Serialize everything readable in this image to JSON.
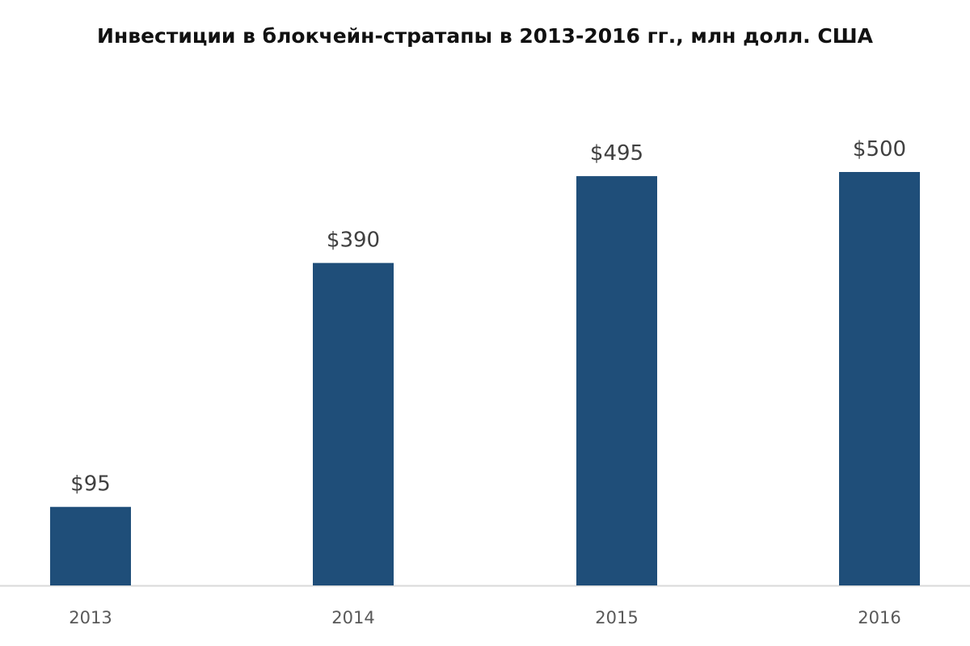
{
  "chart_data": {
    "type": "bar",
    "title": "Инвестиции в блокчейн-стратапы в 2013-2016 гг., млн долл. США",
    "categories": [
      "2013",
      "2014",
      "2015",
      "2016"
    ],
    "values": [
      95,
      390,
      495,
      500
    ],
    "data_labels": [
      "$95",
      "$390",
      "$495",
      "$500"
    ],
    "xlabel": "",
    "ylabel": "",
    "ylim": [
      0,
      600
    ],
    "grid": false,
    "legend": "none",
    "colors": {
      "bar": "#1f4e79",
      "axis": "#d9d9d9"
    }
  }
}
